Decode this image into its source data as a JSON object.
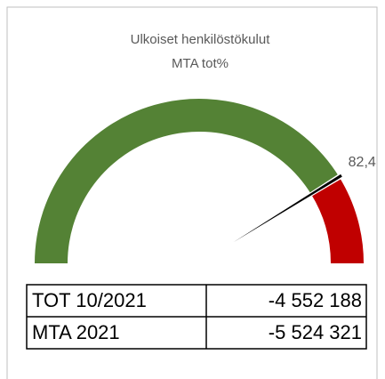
{
  "chart_data": {
    "type": "gauge",
    "title": "Ulkoiset henkilöstökulut",
    "subtitle": "MTA tot%",
    "value": 82.4,
    "value_labels": "82,4",
    "ylim": [
      0,
      100
    ],
    "color": "#548235",
    "remainder_color": "#c00000",
    "needle_color": "#000000"
  },
  "table": {
    "rows": [
      [
        "TOT 10/2021",
        "-4 552 188"
      ],
      [
        "MTA 2021",
        "-5 524 321"
      ]
    ]
  }
}
